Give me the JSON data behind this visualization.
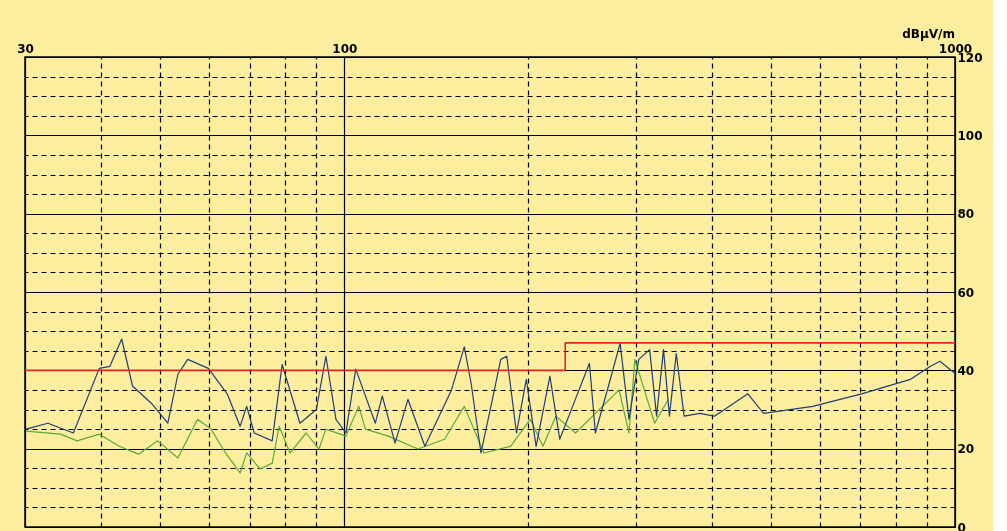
{
  "chart_data": {
    "type": "line",
    "ylabel": "dBµV/m",
    "log": "x",
    "grid": true,
    "xlim": [
      30,
      1000
    ],
    "ylim": [
      0,
      120
    ],
    "xticks": [
      30,
      {
        "value": 40,
        "label": null
      },
      {
        "value": 50,
        "label": null
      },
      {
        "value": 60,
        "label": null
      },
      {
        "value": 70,
        "label": null
      },
      {
        "value": 80,
        "label": null
      },
      {
        "value": 90,
        "label": null
      },
      100,
      {
        "value": 200,
        "label": null
      },
      {
        "value": 300,
        "label": null
      },
      {
        "value": 400,
        "label": null
      },
      {
        "value": 500,
        "label": null
      },
      {
        "value": 600,
        "label": null
      },
      {
        "value": 700,
        "label": null
      },
      {
        "value": 800,
        "label": null
      },
      {
        "value": 900,
        "label": null
      },
      1000
    ],
    "yticks": [
      0,
      {
        "value": 5,
        "label": null
      },
      {
        "value": 10,
        "label": null
      },
      {
        "value": 15,
        "label": null
      },
      20,
      {
        "value": 25,
        "label": null
      },
      {
        "value": 30,
        "label": null
      },
      {
        "value": 35,
        "label": null
      },
      40,
      {
        "value": 45,
        "label": null
      },
      {
        "value": 50,
        "label": null
      },
      {
        "value": 55,
        "label": null
      },
      60,
      {
        "value": 65,
        "label": null
      },
      {
        "value": 70,
        "label": null
      },
      {
        "value": 75,
        "label": null
      },
      80,
      {
        "value": 85,
        "label": null
      },
      {
        "value": 90,
        "label": null
      },
      {
        "value": 95,
        "label": null
      },
      100,
      {
        "value": 105,
        "label": null
      },
      {
        "value": 110,
        "label": null
      },
      {
        "value": 115,
        "label": null
      },
      120
    ],
    "series": [
      {
        "color": "#5aaa3a",
        "x": [
          30.1,
          34.3,
          36.5,
          39.7,
          42.8,
          46.0,
          49.5,
          53.4,
          57.5,
          60.5,
          63.9,
          67.5,
          69.2,
          72.8,
          76.2,
          78.2,
          81.5,
          86.6,
          90.9,
          93.3,
          100.6,
          105.6,
          108.3,
          118.0,
          132.0,
          145.9,
          157.2,
          169.3,
          187.2,
          201.6,
          211.5,
          222.0,
          239.1,
          257.7,
          281.8,
          292.5,
          299.1,
          322.2,
          339.4
        ],
        "values": [
          24.5,
          23.7,
          22,
          23.7,
          20.6,
          18.6,
          22,
          17.6,
          27.5,
          25,
          18.9,
          13.8,
          18.9,
          14.8,
          16.3,
          25.7,
          18.9,
          24,
          19.9,
          25,
          23.2,
          30.8,
          25,
          23.2,
          19.9,
          22.4,
          30.8,
          18.9,
          20.6,
          27.5,
          20.6,
          28.3,
          24,
          29,
          35,
          24,
          42.8,
          26.5,
          32.6
        ]
      },
      {
        "color": "#1f3f7a",
        "x": [
          30.1,
          32.7,
          36.0,
          39.7,
          41.3,
          43.2,
          45.0,
          48.3,
          51.4,
          53.4,
          55.4,
          59.9,
          64.3,
          67.5,
          69.2,
          71.2,
          76.2,
          79.1,
          84.6,
          90.0,
          93.3,
          96.9,
          100.6,
          104.4,
          112.4,
          115.4,
          121.1,
          127.1,
          135.5,
          149.8,
          157.2,
          161.3,
          167.4,
          173.8,
          180.4,
          184.5,
          191.4,
          198.6,
          206.1,
          217.1,
          225.3,
          236.5,
          252.0,
          257.7,
          271.5,
          282.9,
          292.5,
          303.5,
          316.2,
          324.6,
          333.2,
          340.7,
          349.6,
          360.1,
          381.9,
          403.8,
          457.9,
          486.0,
          584.7,
          703.2,
          845.6,
          910.4,
          945.0,
          1000
        ],
        "values": [
          25,
          26.5,
          24,
          40.5,
          41,
          48,
          36,
          31.6,
          26.5,
          39,
          42.8,
          40.5,
          34,
          25.7,
          30.8,
          24,
          22,
          41.5,
          26.5,
          30,
          43.6,
          27.5,
          24,
          40.3,
          26.5,
          33.4,
          21.4,
          32.6,
          20.6,
          35,
          46,
          36.7,
          18.9,
          30.8,
          42.8,
          43.6,
          24,
          37.7,
          20.6,
          38.5,
          22.4,
          30.8,
          41.8,
          24,
          36.7,
          46.9,
          27.5,
          42.8,
          45.3,
          28.3,
          45.3,
          28.3,
          44.3,
          28.3,
          29,
          28.3,
          34,
          29,
          30.8,
          34,
          37.7,
          41,
          42.3,
          39.2
        ]
      },
      {
        "type": "step",
        "color": "#e8202a",
        "x": [
          30,
          230,
          1000
        ],
        "values": [
          40,
          47,
          47
        ]
      }
    ]
  }
}
